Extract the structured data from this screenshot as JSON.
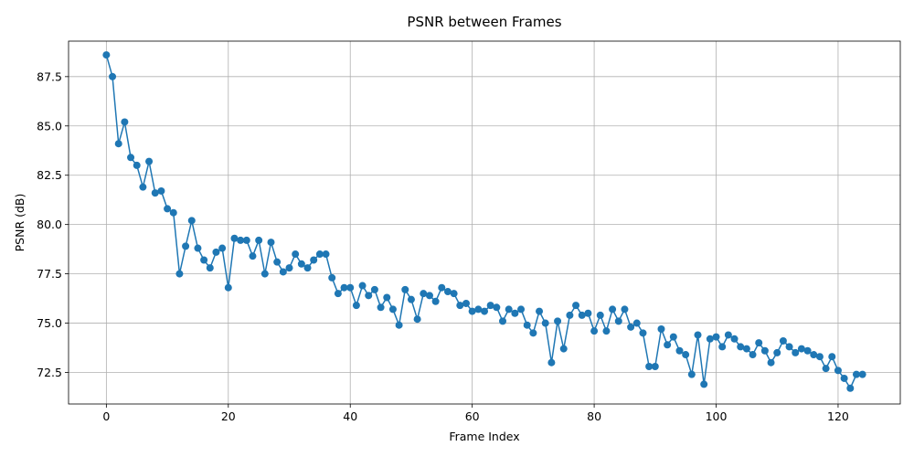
{
  "chart_data": {
    "type": "line",
    "title": "PSNR between Frames",
    "xlabel": "Frame Index",
    "ylabel": "PSNR (dB)",
    "xlim": [
      -6.2,
      130.2
    ],
    "ylim": [
      70.9,
      89.3
    ],
    "xticks": [
      0,
      20,
      40,
      60,
      80,
      100,
      120
    ],
    "yticks": [
      72.5,
      75.0,
      77.5,
      80.0,
      82.5,
      85.0,
      87.5
    ],
    "grid": true,
    "color": "#1f77b4",
    "marker": "circle",
    "x": [
      0,
      1,
      2,
      3,
      4,
      5,
      6,
      7,
      8,
      9,
      10,
      11,
      12,
      13,
      14,
      15,
      16,
      17,
      18,
      19,
      20,
      21,
      22,
      23,
      24,
      25,
      26,
      27,
      28,
      29,
      30,
      31,
      32,
      33,
      34,
      35,
      36,
      37,
      38,
      39,
      40,
      41,
      42,
      43,
      44,
      45,
      46,
      47,
      48,
      49,
      50,
      51,
      52,
      53,
      54,
      55,
      56,
      57,
      58,
      59,
      60,
      61,
      62,
      63,
      64,
      65,
      66,
      67,
      68,
      69,
      70,
      71,
      72,
      73,
      74,
      75,
      76,
      77,
      78,
      79,
      80,
      81,
      82,
      83,
      84,
      85,
      86,
      87,
      88,
      89,
      90,
      91,
      92,
      93,
      94,
      95,
      96,
      97,
      98,
      99,
      100,
      101,
      102,
      103,
      104,
      105,
      106,
      107,
      108,
      109,
      110,
      111,
      112,
      113,
      114,
      115,
      116,
      117,
      118,
      119,
      120,
      121,
      122,
      123,
      124
    ],
    "y": [
      88.6,
      87.5,
      84.1,
      85.2,
      83.4,
      83.0,
      81.9,
      83.2,
      81.6,
      81.7,
      80.8,
      80.6,
      77.5,
      78.9,
      80.2,
      78.8,
      78.2,
      77.8,
      78.6,
      78.8,
      76.8,
      79.3,
      79.2,
      79.2,
      78.4,
      79.2,
      77.5,
      79.1,
      78.1,
      77.6,
      77.8,
      78.5,
      78.0,
      77.8,
      78.2,
      78.5,
      78.5,
      77.3,
      76.5,
      76.8,
      76.8,
      75.9,
      76.9,
      76.4,
      76.7,
      75.8,
      76.3,
      75.7,
      74.9,
      76.7,
      76.2,
      75.2,
      76.5,
      76.4,
      76.1,
      76.8,
      76.6,
      76.5,
      75.9,
      76.0,
      75.6,
      75.7,
      75.6,
      75.9,
      75.8,
      75.1,
      75.7,
      75.5,
      75.7,
      74.9,
      74.5,
      75.6,
      75.0,
      73.0,
      75.1,
      73.7,
      75.4,
      75.9,
      75.4,
      75.5,
      74.6,
      75.4,
      74.6,
      75.7,
      75.1,
      75.7,
      74.8,
      75.0,
      74.5,
      72.8,
      72.8,
      74.7,
      73.9,
      74.3,
      73.6,
      73.4,
      72.4,
      74.4,
      71.9,
      74.2,
      74.3,
      73.8,
      74.4,
      74.2,
      73.8,
      73.7,
      73.4,
      74.0,
      73.6,
      73.0,
      73.5,
      74.1,
      73.8,
      73.5,
      73.7,
      73.6,
      73.4,
      73.3,
      72.7,
      73.3,
      72.6,
      72.2,
      71.7,
      72.4,
      72.4
    ]
  }
}
